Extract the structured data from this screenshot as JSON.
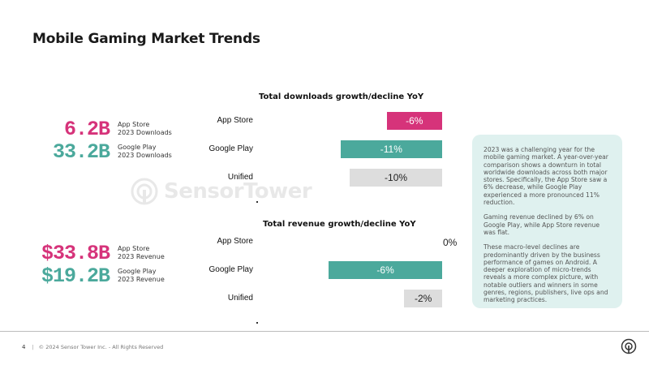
{
  "page": {
    "title": "Mobile Gaming Market Trends"
  },
  "stats": {
    "downloads": [
      {
        "value": "6.2B",
        "label_line1": "App Store",
        "label_line2": "2023 Downloads",
        "color": "#d6337a"
      },
      {
        "value": "33.2B",
        "label_line1": "Google Play",
        "label_line2": "2023 Downloads",
        "color": "#4ba99c"
      }
    ],
    "revenue": [
      {
        "value": "$33.8B",
        "label_line1": "App Store",
        "label_line2": "2023 Revenue",
        "color": "#d6337a"
      },
      {
        "value": "$19.2B",
        "label_line1": "Google Play",
        "label_line2": "2023 Revenue",
        "color": "#4ba99c"
      }
    ]
  },
  "chart_data": [
    {
      "type": "bar",
      "orientation": "horizontal",
      "title": "Total downloads growth/decline YoY",
      "categories": [
        "App Store",
        "Google Play",
        "Unified"
      ],
      "values": [
        -6,
        -11,
        -10
      ],
      "value_labels": [
        "-6%",
        "-11%",
        "-10%"
      ],
      "colors": [
        "#d6337a",
        "#4ba99c",
        "#dddddd"
      ],
      "xlim": [
        -18,
        0
      ]
    },
    {
      "type": "bar",
      "orientation": "horizontal",
      "title": "Total revenue growth/decline YoY",
      "categories": [
        "App Store",
        "Google Play",
        "Unified"
      ],
      "values": [
        0,
        -6,
        -2
      ],
      "value_labels": [
        "0%",
        "-6%",
        "-2%"
      ],
      "colors": [
        "#d6337a",
        "#4ba99c",
        "#dddddd"
      ],
      "xlim": [
        -8.8,
        0
      ]
    }
  ],
  "watermark": {
    "text": "SensorTower"
  },
  "note": {
    "paragraphs": [
      "2023 was a challenging year for the mobile gaming market. A year-over-year comparison shows a downturn in total worldwide downloads across both major stores. Specifically, the App Store saw a 6% decrease, while Google Play experienced a more pronounced 11% reduction.",
      "Gaming revenue declined by 6% on Google Play, while App Store revenue was flat.",
      "These macro-level declines are predominantly driven by the business performance of games on Android. A deeper exploration of micro-trends reveals a more complex picture, with notable outliers and winners in some genres, regions, publishers, live ops and marketing practices."
    ]
  },
  "footer": {
    "page_number": "4",
    "separator": "|",
    "copyright": "© 2024 Sensor Tower Inc. - All Rights Reserved"
  },
  "colors": {
    "pink": "#d6337a",
    "teal": "#4ba99c",
    "gray": "#dddddd",
    "note_bg": "#dff1ef"
  }
}
